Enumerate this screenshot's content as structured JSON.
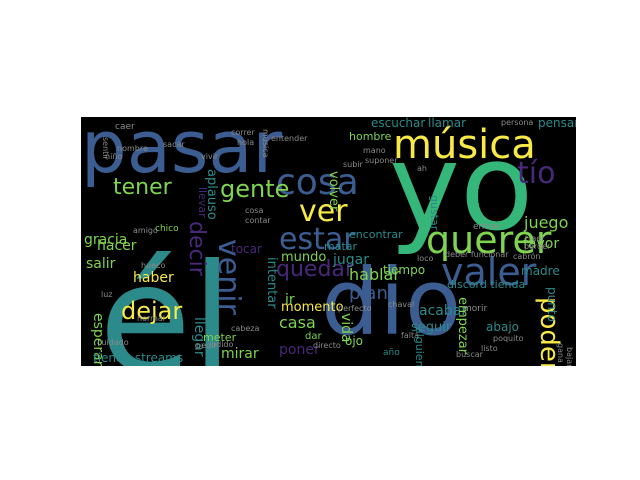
{
  "background": "#000000",
  "palette": {
    "blue": "#3b5d92",
    "teal": "#2c8a8a",
    "green": "#35b779",
    "lime": "#7fd34e",
    "yellow": "#f7e946",
    "purple": "#482878",
    "gray": "#8a8a8a"
  },
  "words": [
    {
      "text": "él",
      "color": "teal"
    },
    {
      "text": "yo",
      "color": "green"
    },
    {
      "text": "pasar",
      "color": "blue"
    },
    {
      "text": "dio",
      "color": "blue"
    },
    {
      "text": "música",
      "color": "yellow"
    },
    {
      "text": "querer",
      "color": "lime"
    },
    {
      "text": "valer",
      "color": "blue"
    },
    {
      "text": "cosa",
      "color": "blue"
    },
    {
      "text": "estar",
      "color": "blue"
    },
    {
      "text": "ver",
      "color": "yellow"
    },
    {
      "text": "venir",
      "color": "blue"
    },
    {
      "text": "tío",
      "color": "purple"
    },
    {
      "text": "gente",
      "color": "lime"
    },
    {
      "text": "tener",
      "color": "lime"
    },
    {
      "text": "poder",
      "color": "yellow"
    },
    {
      "text": "quedar",
      "color": "purple"
    },
    {
      "text": "dejar",
      "color": "yellow"
    },
    {
      "text": "decir",
      "color": "purple"
    },
    {
      "text": "plan",
      "color": "blue"
    },
    {
      "text": "hablar",
      "color": "lime"
    },
    {
      "text": "mirar",
      "color": "lime"
    },
    {
      "text": "juego",
      "color": "lime"
    },
    {
      "text": "gracia",
      "color": "lime"
    },
    {
      "text": "poner",
      "color": "purple"
    },
    {
      "text": "casa",
      "color": "lime"
    },
    {
      "text": "vida",
      "color": "lime"
    },
    {
      "text": "llegar",
      "color": "teal"
    },
    {
      "text": "esperar",
      "color": "lime"
    },
    {
      "text": "haber",
      "color": "yellow"
    },
    {
      "text": "acabar",
      "color": "teal"
    },
    {
      "text": "tienda streams",
      "color": "teal"
    },
    {
      "text": "salir",
      "color": "lime"
    },
    {
      "text": "hacer",
      "color": "lime"
    },
    {
      "text": "favor",
      "color": "lime"
    },
    {
      "text": "jugar",
      "color": "teal"
    },
    {
      "text": "volver",
      "color": "lime"
    },
    {
      "text": "aplauso",
      "color": "teal"
    },
    {
      "text": "momento",
      "color": "yellow"
    },
    {
      "text": "seguir",
      "color": "teal"
    },
    {
      "text": "empezar",
      "color": "lime"
    },
    {
      "text": "intentar",
      "color": "teal"
    },
    {
      "text": "mundo",
      "color": "lime"
    },
    {
      "text": "tiempo",
      "color": "lime"
    },
    {
      "text": "escuchar",
      "color": "teal"
    },
    {
      "text": "llamar",
      "color": "teal"
    },
    {
      "text": "pensar",
      "color": "teal"
    },
    {
      "text": "abajo",
      "color": "teal"
    },
    {
      "text": "ir",
      "color": "lime"
    },
    {
      "text": "ojo",
      "color": "lime"
    },
    {
      "text": "tocar",
      "color": "purple"
    },
    {
      "text": "meter",
      "color": "lime"
    },
    {
      "text": "llevar",
      "color": "purple"
    },
    {
      "text": "madre",
      "color": "teal"
    },
    {
      "text": "punto",
      "color": "teal"
    },
    {
      "text": "alguien",
      "color": "teal"
    },
    {
      "text": "discord tienda",
      "color": "teal"
    },
    {
      "text": "gustar",
      "color": "teal"
    },
    {
      "text": "hombre",
      "color": "lime"
    },
    {
      "text": "matar",
      "color": "teal"
    },
    {
      "text": "encontrar",
      "color": "teal"
    },
    {
      "text": "caer",
      "color": "gray"
    },
    {
      "text": "chico",
      "color": "lime"
    },
    {
      "text": "amigo",
      "color": "gray"
    },
    {
      "text": "morir",
      "color": "gray"
    },
    {
      "text": "año",
      "color": "teal"
    },
    {
      "text": "dar",
      "color": "lime"
    },
    {
      "text": "buscar",
      "color": "gray"
    },
    {
      "text": "chaval",
      "color": "gray"
    },
    {
      "text": "perfecto",
      "color": "gray"
    },
    {
      "text": "cabeza",
      "color": "gray"
    },
    {
      "text": "cuidado",
      "color": "gray"
    },
    {
      "text": "entrar",
      "color": "gray"
    },
    {
      "text": "subir",
      "color": "gray"
    },
    {
      "text": "música",
      "color": "gray"
    },
    {
      "text": "hola",
      "color": "gray"
    },
    {
      "text": "ah",
      "color": "gray"
    },
    {
      "text": "correr",
      "color": "gray"
    },
    {
      "text": "entender",
      "color": "gray"
    },
    {
      "text": "contar",
      "color": "gray"
    },
    {
      "text": "loco",
      "color": "gray"
    },
    {
      "text": "deber funcionar",
      "color": "gray"
    },
    {
      "text": "directo",
      "color": "gray"
    },
    {
      "text": "poquito",
      "color": "gray"
    },
    {
      "text": "perder",
      "color": "gray"
    },
    {
      "text": "sentir",
      "color": "gray"
    },
    {
      "text": "traer",
      "color": "gray"
    },
    {
      "text": "persona",
      "color": "gray"
    },
    {
      "text": "falta",
      "color": "gray"
    },
    {
      "text": "nombre",
      "color": "gray"
    },
    {
      "text": "mano",
      "color": "gray"
    },
    {
      "text": "sacar",
      "color": "gray"
    },
    {
      "text": "listo",
      "color": "gray"
    },
    {
      "text": "niño",
      "color": "gray"
    },
    {
      "text": "vivir",
      "color": "gray"
    },
    {
      "text": "suponer",
      "color": "gray"
    },
    {
      "text": "jodido",
      "color": "gray"
    },
    {
      "text": "gana",
      "color": "gray"
    },
    {
      "text": "bajar",
      "color": "gray"
    },
    {
      "text": "cosa",
      "color": "gray"
    },
    {
      "text": "hueco",
      "color": "gray"
    },
    {
      "text": "normal",
      "color": "gray"
    },
    {
      "text": "cabrón",
      "color": "gray"
    },
    {
      "text": "luz",
      "color": "gray"
    },
    {
      "text": "pedir",
      "color": "gray"
    }
  ]
}
